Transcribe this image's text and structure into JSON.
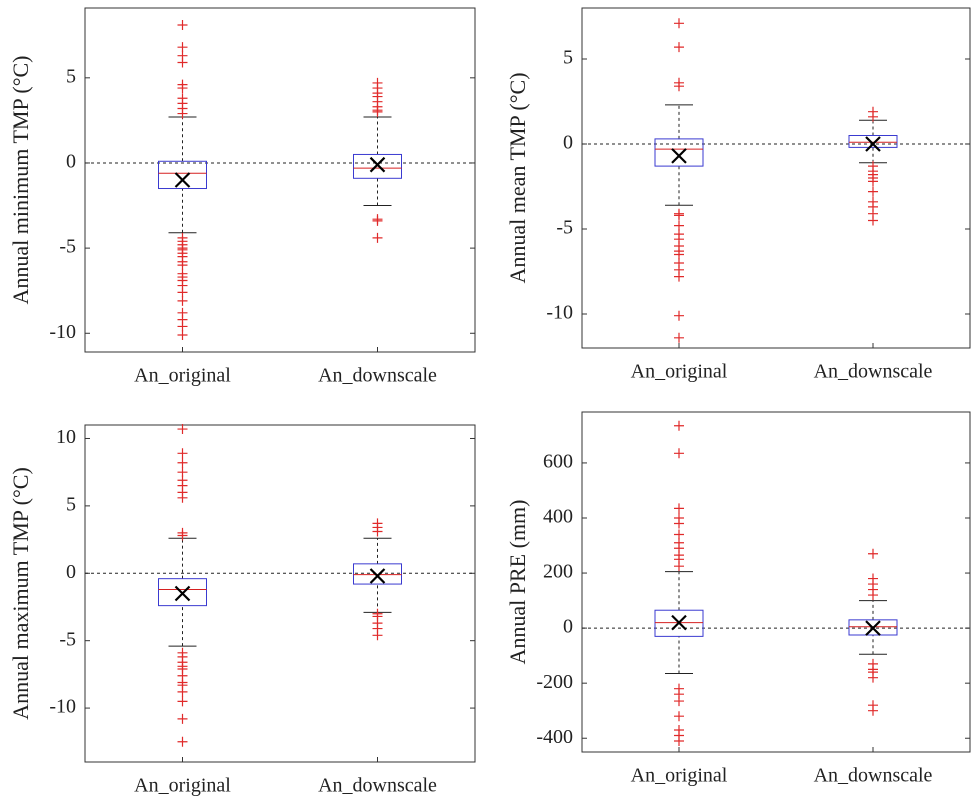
{
  "chart_data": [
    {
      "type": "box",
      "ylabel": "Annual minimum TMP (°C)",
      "categories": [
        "An_original",
        "An_downscale"
      ],
      "ylim": [
        -11.1,
        9.1
      ],
      "yticks": [
        -10,
        -5,
        0,
        5
      ],
      "hline": 0,
      "box_color": "#3a3ad0",
      "median_color": "#d62020",
      "outlier_color": "#e02a2a",
      "mean_color": "#000000",
      "boxes": [
        {
          "whisker_low": -4.1,
          "q1": -1.5,
          "median": -0.6,
          "q3": 0.1,
          "whisker_high": 2.7,
          "mean": -1.0,
          "outliers": [
            8.1,
            6.8,
            6.3,
            5.9,
            4.6,
            4.4,
            3.8,
            3.5,
            3.2,
            2.9,
            -4.4,
            -4.6,
            -4.8,
            -5.0,
            -5.1,
            -5.3,
            -5.5,
            -5.8,
            -6.0,
            -6.5,
            -6.7,
            -6.9,
            -7.2,
            -7.6,
            -8.1,
            -8.8,
            -9.2,
            -9.6,
            -10.1
          ]
        },
        {
          "whisker_low": -2.5,
          "q1": -0.9,
          "median": -0.3,
          "q3": 0.5,
          "whisker_high": 2.7,
          "mean": -0.1,
          "outliers": [
            4.7,
            4.4,
            4.1,
            3.9,
            3.6,
            3.3,
            3.1,
            3.0,
            -3.3,
            -3.4,
            -4.4
          ]
        }
      ]
    },
    {
      "type": "box",
      "ylabel": "Annual mean TMP (°C)",
      "categories": [
        "An_original",
        "An_downscale"
      ],
      "ylim": [
        -12,
        8
      ],
      "yticks": [
        -10,
        -5,
        0,
        5
      ],
      "hline": 0,
      "box_color": "#3a3ad0",
      "median_color": "#d62020",
      "outlier_color": "#e02a2a",
      "mean_color": "#000000",
      "boxes": [
        {
          "whisker_low": -3.6,
          "q1": -1.3,
          "median": -0.3,
          "q3": 0.3,
          "whisker_high": 2.3,
          "mean": -0.7,
          "outliers": [
            7.1,
            5.7,
            3.6,
            3.4,
            -4.1,
            -4.2,
            -4.8,
            -5.3,
            -5.6,
            -6.0,
            -6.3,
            -6.5,
            -7.0,
            -7.4,
            -7.8,
            -10.1,
            -11.4
          ]
        },
        {
          "whisker_low": -1.1,
          "q1": -0.2,
          "median": 0.1,
          "q3": 0.5,
          "whisker_high": 1.4,
          "mean": 0.0,
          "outliers": [
            1.9,
            1.6,
            -1.3,
            -1.6,
            -1.8,
            -2.0,
            -2.2,
            -2.8,
            -3.4,
            -3.7,
            -4.1,
            -4.5
          ]
        }
      ]
    },
    {
      "type": "box",
      "ylabel": "Annual maximum TMP (°C)",
      "categories": [
        "An_original",
        "An_downscale"
      ],
      "ylim": [
        -14,
        11
      ],
      "yticks": [
        -10,
        -5,
        0,
        5,
        10
      ],
      "hline": 0,
      "box_color": "#3a3ad0",
      "median_color": "#d62020",
      "outlier_color": "#e02a2a",
      "mean_color": "#000000",
      "boxes": [
        {
          "whisker_low": -5.4,
          "q1": -2.4,
          "median": -1.2,
          "q3": -0.4,
          "whisker_high": 2.6,
          "mean": -1.5,
          "outliers": [
            10.7,
            8.9,
            8.2,
            7.5,
            6.9,
            6.5,
            6.0,
            5.6,
            3.0,
            2.8,
            -5.9,
            -6.2,
            -6.6,
            -6.9,
            -7.1,
            -7.6,
            -8.1,
            -8.3,
            -8.8,
            -9.5,
            -10.8,
            -12.5
          ]
        },
        {
          "whisker_low": -2.9,
          "q1": -0.8,
          "median": -0.1,
          "q3": 0.7,
          "whisker_high": 2.6,
          "mean": -0.2,
          "outliers": [
            3.7,
            3.4,
            3.1,
            -3.0,
            -3.2,
            -3.7,
            -4.1,
            -4.6
          ]
        }
      ]
    },
    {
      "type": "box",
      "ylabel": "Annual PRE (mm)",
      "categories": [
        "An_original",
        "An_downscale"
      ],
      "ylim": [
        -450,
        785
      ],
      "yticks": [
        -400,
        -200,
        0,
        200,
        400,
        600
      ],
      "hline": 0,
      "box_color": "#3a3ad0",
      "median_color": "#d62020",
      "outlier_color": "#e02a2a",
      "mean_color": "#000000",
      "boxes": [
        {
          "whisker_low": -165,
          "q1": -30,
          "median": 20,
          "q3": 65,
          "whisker_high": 205,
          "mean": 20,
          "outliers": [
            735,
            635,
            435,
            400,
            380,
            340,
            310,
            290,
            265,
            250,
            225,
            -220,
            -240,
            -265,
            -320,
            -370,
            -390,
            -410
          ]
        },
        {
          "whisker_low": -95,
          "q1": -25,
          "median": 5,
          "q3": 30,
          "whisker_high": 100,
          "mean": 0,
          "outliers": [
            270,
            180,
            160,
            140,
            120,
            -130,
            -150,
            -160,
            -180,
            -280,
            -300
          ]
        }
      ]
    }
  ]
}
